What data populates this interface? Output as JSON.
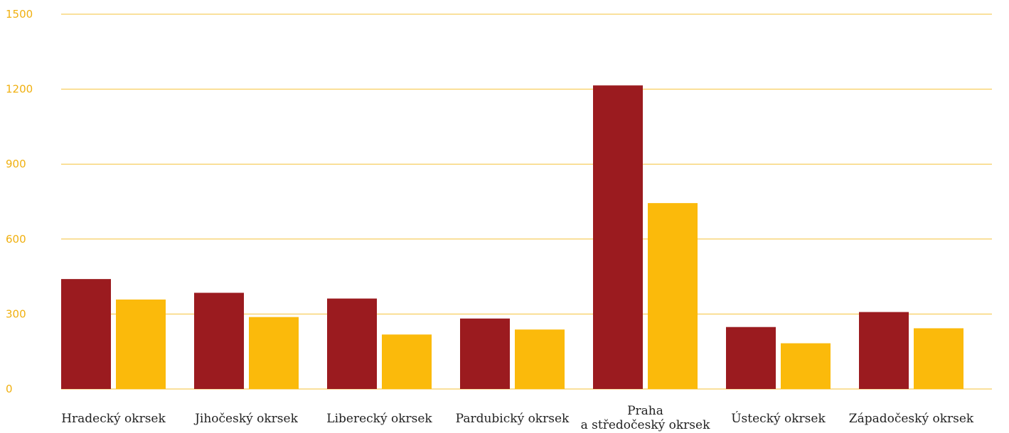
{
  "chart_data": {
    "type": "bar",
    "title": "",
    "xlabel": "",
    "ylabel": "",
    "ylim": [
      0,
      1500
    ],
    "yticks": [
      "0",
      "300",
      "600",
      "900",
      "1200",
      "1500"
    ],
    "grid": true,
    "legend": "none",
    "categories": [
      [
        "Hradecký okrsek"
      ],
      [
        "Jihočeský okrsek"
      ],
      [
        "Liberecký okrsek"
      ],
      [
        "Pardubický okrsek"
      ],
      [
        "Praha",
        "a středočeský okrsek"
      ],
      [
        "Ústecký okrsek"
      ],
      [
        "Západočeský okrsek"
      ]
    ],
    "series": [
      {
        "values": [
          440,
          385,
          362,
          282,
          1215,
          248,
          308
        ]
      },
      {
        "values": [
          358,
          288,
          218,
          238,
          744,
          183,
          243
        ]
      }
    ],
    "colors": {
      "series": [
        "#9b1b1f",
        "#fbba0b"
      ],
      "grid": "#f6c23a",
      "ytick_text": "#f0b010",
      "xtick_text": "#222222"
    }
  }
}
